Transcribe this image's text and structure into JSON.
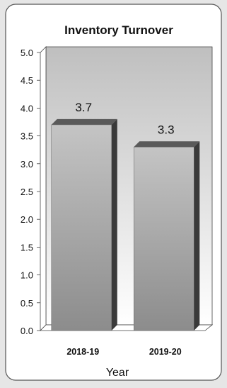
{
  "chart_data": {
    "type": "bar",
    "title": "Inventory Turnover",
    "xlabel": "Year",
    "ylabel": "",
    "categories": [
      "2018-19",
      "2019-20"
    ],
    "values": [
      3.7,
      3.3
    ],
    "data_labels": [
      "3.7",
      "3.3"
    ],
    "ylim": [
      0,
      5
    ],
    "yticks": [
      "0.0",
      "0.5",
      "1.0",
      "1.5",
      "2.0",
      "2.5",
      "3.0",
      "3.5",
      "4.0",
      "4.5",
      "5.0"
    ],
    "grid": false,
    "legend": "none",
    "colors": {
      "bar_light": "#c4c4c4",
      "bar_dark": "#8c8c8c",
      "bar_side": "#3a3a3a",
      "bar_top": "#5a5a5a",
      "wall_top": "#bfbfbf",
      "wall_bottom": "#ffffff",
      "panel": "#ffffff",
      "backdrop": "#e6e6e6"
    }
  }
}
